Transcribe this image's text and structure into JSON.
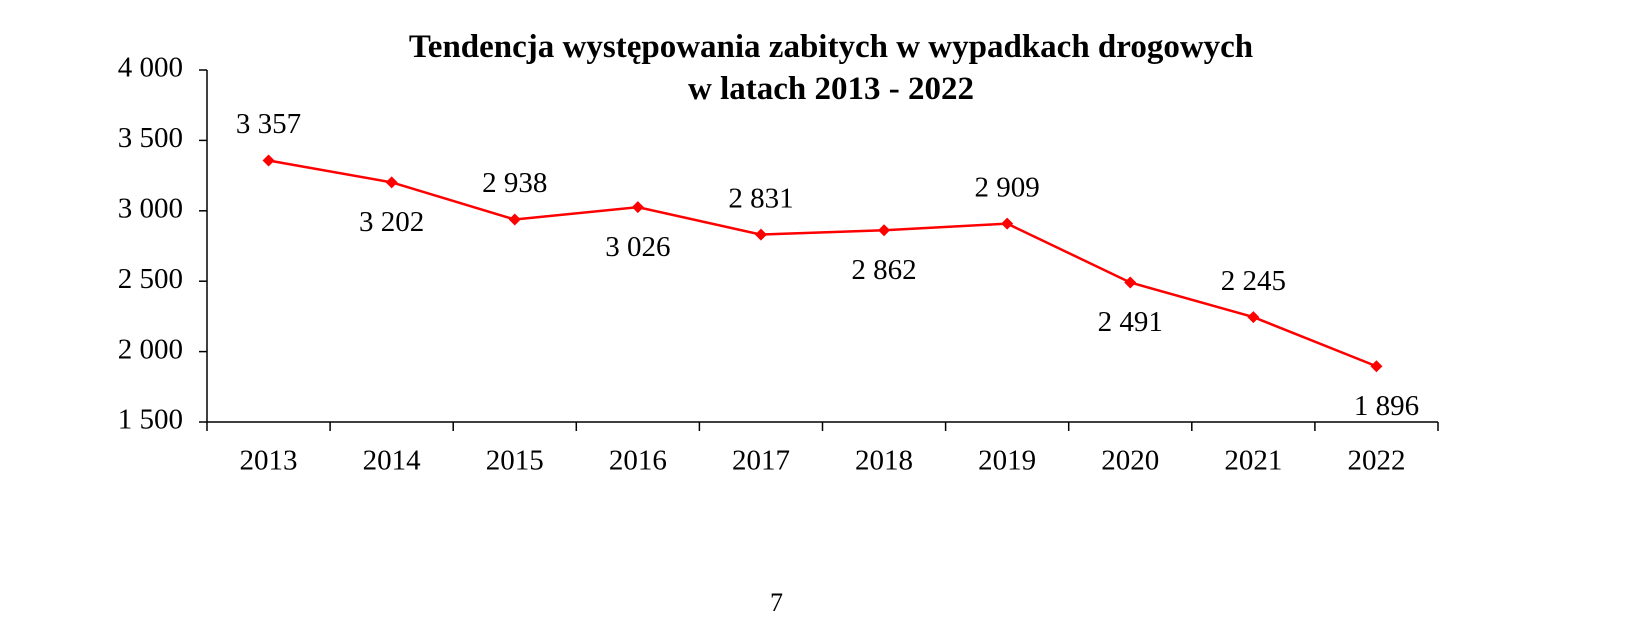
{
  "chart_data": {
    "type": "line",
    "title": "Tendencja występowania zabitych w wypadkach drogowych\nw latach 2013 - 2022",
    "categories": [
      "2013",
      "2014",
      "2015",
      "2016",
      "2017",
      "2018",
      "2019",
      "2020",
      "2021",
      "2022"
    ],
    "series": [
      {
        "color": "#ff0000",
        "values": [
          3357,
          3202,
          2938,
          3026,
          2831,
          2862,
          2909,
          2491,
          2245,
          1896
        ],
        "value_labels": [
          "3 357",
          "3 202",
          "2 938",
          "3 026",
          "2 831",
          "2 862",
          "2 909",
          "2 491",
          "2 245",
          "1 896"
        ]
      }
    ],
    "ylim": [
      1500,
      4000
    ],
    "yticks": [
      {
        "value": 1500,
        "label": "1 500"
      },
      {
        "value": 2000,
        "label": "2 000"
      },
      {
        "value": 2500,
        "label": "2 500"
      },
      {
        "value": 3000,
        "label": "3 000"
      },
      {
        "value": 3500,
        "label": "3 500"
      },
      {
        "value": 4000,
        "label": "4 000"
      }
    ],
    "grid": false
  },
  "page_number": "7"
}
